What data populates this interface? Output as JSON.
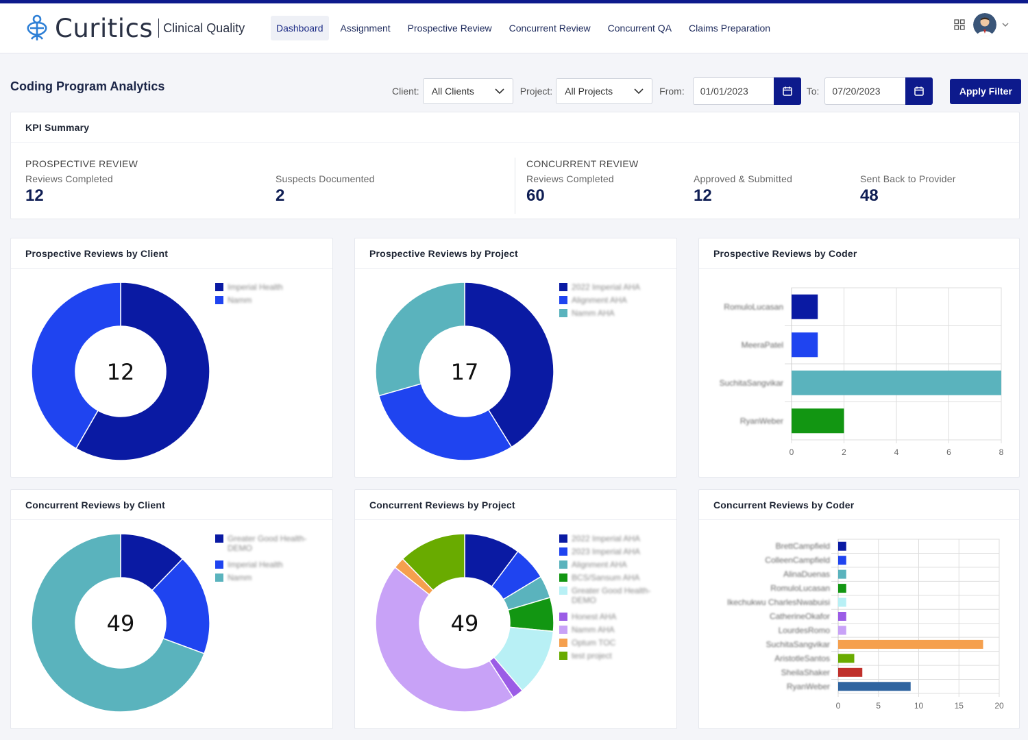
{
  "app": {
    "brand": "Curitics",
    "subtitle": "Clinical Quality"
  },
  "nav": {
    "items": [
      "Dashboard",
      "Assignment",
      "Prospective Review",
      "Concurrent Review",
      "Concurrent QA",
      "Claims Preparation"
    ],
    "active": "Dashboard"
  },
  "page": {
    "title": "Coding Program Analytics"
  },
  "filters": {
    "client_label": "Client:",
    "client_value": "All Clients",
    "project_label": "Project:",
    "project_value": "All Projects",
    "from_label": "From:",
    "from_value": "01/01/2023",
    "to_label": "To:",
    "to_value": "07/20/2023",
    "apply_label": "Apply Filter"
  },
  "kpi": {
    "title": "KPI Summary",
    "prospective": {
      "section": "PROSPECTIVE REVIEW",
      "metrics": [
        {
          "label": "Reviews Completed",
          "value": "12"
        },
        {
          "label": "Suspects Documented",
          "value": "2"
        }
      ]
    },
    "concurrent": {
      "section": "CONCURRENT REVIEW",
      "metrics": [
        {
          "label": "Reviews Completed",
          "value": "60"
        },
        {
          "label": "Approved & Submitted",
          "value": "12"
        },
        {
          "label": "Sent Back to Provider",
          "value": "48"
        }
      ]
    }
  },
  "colors": {
    "navy": "#0a1aa3",
    "blue": "#1f44f0",
    "teal": "#5ab3bd",
    "green": "#129612",
    "light_cyan": "#b8f0f5",
    "purple": "#9b5ce6",
    "lavender": "#c8a2f7",
    "orange": "#f5a04e",
    "lime": "#69ab00",
    "red": "#c0302b",
    "steel": "#2f64a0"
  },
  "chart_data": [
    {
      "id": "prospective-by-client",
      "type": "pie",
      "title": "Prospective Reviews by Client",
      "center_label": "12",
      "slices": [
        {
          "label": "Imperial Health",
          "value": 7,
          "color": "#0a1aa3"
        },
        {
          "label": "Namm",
          "value": 5,
          "color": "#1f44f0"
        }
      ]
    },
    {
      "id": "prospective-by-project",
      "type": "pie",
      "title": "Prospective Reviews by Project",
      "center_label": "17",
      "slices": [
        {
          "label": "2022 Imperial AHA",
          "value": 7,
          "color": "#0a1aa3"
        },
        {
          "label": "Alignment AHA",
          "value": 5,
          "color": "#1f44f0"
        },
        {
          "label": "Namm AHA",
          "value": 5,
          "color": "#5ab3bd"
        }
      ]
    },
    {
      "id": "prospective-by-coder",
      "type": "bar",
      "orientation": "horizontal",
      "title": "Prospective Reviews by Coder",
      "categories": [
        "RomuloLucasan",
        "MeeraPatel",
        "SuchitaSangvikar",
        "RyanWeber"
      ],
      "values": [
        1,
        1,
        8,
        2
      ],
      "colors": [
        "#0a1aa3",
        "#1f44f0",
        "#5ab3bd",
        "#129612"
      ],
      "xlim": [
        0,
        8
      ],
      "xticks": [
        0,
        2,
        4,
        6,
        8
      ]
    },
    {
      "id": "concurrent-by-client",
      "type": "pie",
      "title": "Concurrent Reviews by Client",
      "center_label": "49",
      "slices": [
        {
          "label": "Greater Good Health-DEMO",
          "value": 6,
          "color": "#0a1aa3"
        },
        {
          "label": "Imperial Health",
          "value": 9,
          "color": "#1f44f0"
        },
        {
          "label": "Namm",
          "value": 34,
          "color": "#5ab3bd"
        }
      ]
    },
    {
      "id": "concurrent-by-project",
      "type": "pie",
      "title": "Concurrent Reviews by Project",
      "center_label": "49",
      "slices": [
        {
          "label": "2022 Imperial AHA",
          "value": 5,
          "color": "#0a1aa3"
        },
        {
          "label": "2023 Imperial AHA",
          "value": 3,
          "color": "#1f44f0"
        },
        {
          "label": "Alignment AHA",
          "value": 2,
          "color": "#5ab3bd"
        },
        {
          "label": "BCS/Sansum AHA",
          "value": 3,
          "color": "#129612"
        },
        {
          "label": "Greater Good Health-DEMO",
          "value": 6,
          "color": "#b8f0f5"
        },
        {
          "label": "Honest AHA",
          "value": 1,
          "color": "#9b5ce6"
        },
        {
          "label": "Namm AHA",
          "value": 22,
          "color": "#c8a2f7"
        },
        {
          "label": "Optum TOC",
          "value": 1,
          "color": "#f5a04e"
        },
        {
          "label": "test project",
          "value": 6,
          "color": "#69ab00"
        }
      ]
    },
    {
      "id": "concurrent-by-coder",
      "type": "bar",
      "orientation": "horizontal",
      "title": "Concurrent Reviews by Coder",
      "categories": [
        "BrettCampfield",
        "ColleenCampfield",
        "AlinaDuenas",
        "RomuloLucasan",
        "Ikechukwu CharlesNwabuisi",
        "CatherineOkafor",
        "LourdesRomo",
        "SuchitaSangvikar",
        "AristotleSantos",
        "SheilaShaker",
        "RyanWeber"
      ],
      "values": [
        1,
        1,
        1,
        1,
        1,
        1,
        1,
        18,
        2,
        3,
        9
      ],
      "colors": [
        "#0a1aa3",
        "#1f44f0",
        "#5ab3bd",
        "#129612",
        "#b8f0f5",
        "#9b5ce6",
        "#c8a2f7",
        "#f5a04e",
        "#69ab00",
        "#c0302b",
        "#2f64a0"
      ],
      "xlim": [
        0,
        20
      ],
      "xticks": [
        0,
        5,
        10,
        15,
        20
      ]
    }
  ]
}
